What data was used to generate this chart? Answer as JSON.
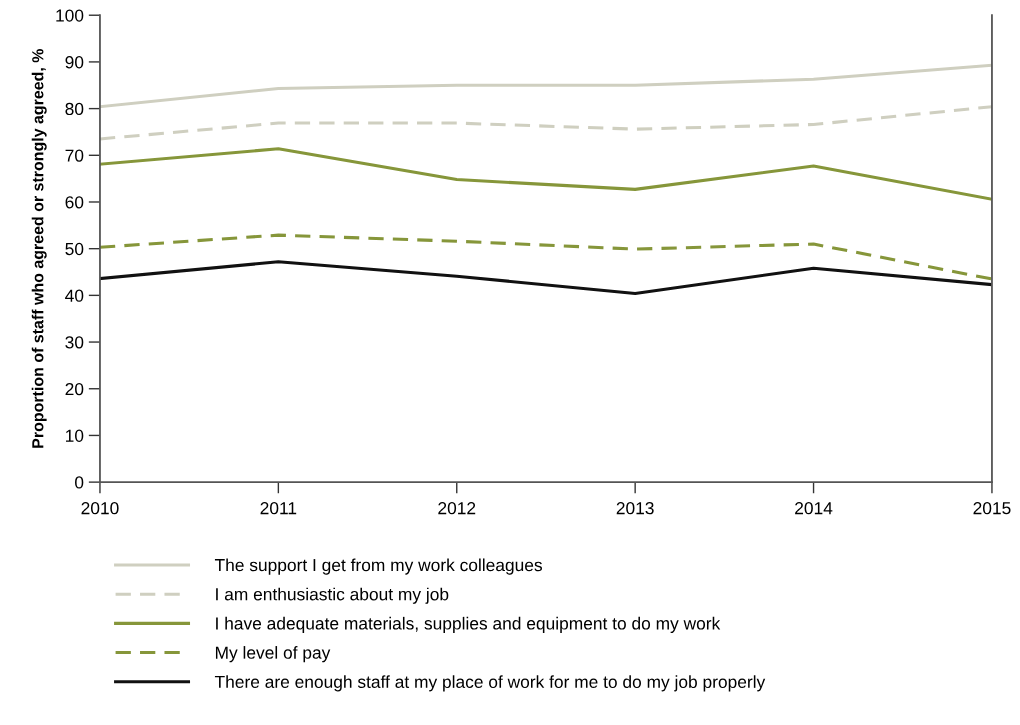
{
  "chart_data": {
    "type": "line",
    "ylabel": "Proportion of staff who agreed or strongly agreed, %",
    "x": [
      2010,
      2011,
      2012,
      2013,
      2014,
      2015
    ],
    "xlim": [
      2010,
      2015
    ],
    "xticks": [
      2010,
      2011,
      2012,
      2013,
      2014,
      2015
    ],
    "ylim": [
      0,
      100
    ],
    "yticks": [
      0,
      10,
      20,
      30,
      40,
      50,
      60,
      70,
      80,
      90,
      100
    ],
    "grid": false,
    "legend": "bottom",
    "marker": "none",
    "series": [
      {
        "name": "The support I get from my work colleagues",
        "color": "#cfcfc0",
        "line_style": "solid",
        "values": [
          80.4,
          84.3,
          85.0,
          85.0,
          86.3,
          89.3
        ]
      },
      {
        "name": "I am enthusiastic about my job",
        "color": "#cfcfc0",
        "line_style": "dashed",
        "values": [
          73.5,
          76.9,
          76.9,
          75.6,
          76.6,
          80.4
        ]
      },
      {
        "name": "I have adequate materials, supplies and equipment to do my work",
        "color": "#86963a",
        "line_style": "solid",
        "values": [
          68.1,
          71.4,
          64.8,
          62.7,
          67.7,
          60.6
        ]
      },
      {
        "name": "My level of pay",
        "color": "#86963a",
        "line_style": "dashed",
        "values": [
          50.3,
          52.9,
          51.6,
          49.9,
          51.0,
          43.5
        ]
      },
      {
        "name": "There are enough staff at my place of work for me to do my job properly",
        "color": "#111111",
        "line_style": "solid",
        "values": [
          43.6,
          47.2,
          44.1,
          40.4,
          45.8,
          42.3
        ]
      }
    ]
  }
}
